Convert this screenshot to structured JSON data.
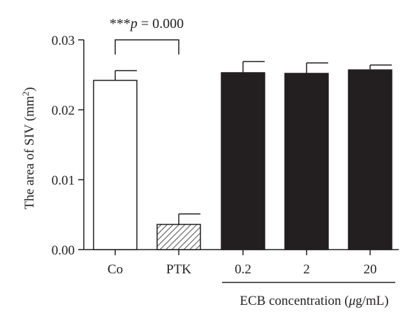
{
  "chart_data": {
    "type": "bar",
    "ylabel_main": "The area of SIV (mm",
    "ylabel_sup": "2",
    "ylabel_end": ")",
    "ylim": [
      0,
      0.03
    ],
    "yticks": [
      "0.00",
      "0.01",
      "0.02",
      "0.03"
    ],
    "ytick_values": [
      0,
      0.01,
      0.02,
      0.03
    ],
    "categories": [
      "Co",
      "PTK",
      "0.2",
      "2",
      "20"
    ],
    "values": [
      0.0242,
      0.0036,
      0.0253,
      0.0252,
      0.0257
    ],
    "errors": [
      0.0014,
      0.0015,
      0.0016,
      0.0015,
      0.0007
    ],
    "fills": [
      "white",
      "hatched",
      "black",
      "black",
      "black"
    ],
    "group_label_main": "ECB concentration (",
    "group_label_mu": "μ",
    "group_label_end": "g/mL)",
    "significance": {
      "stars": "***",
      "p": "p",
      "rest": " = 0.000",
      "between": [
        "Co",
        "PTK"
      ]
    },
    "colors": {
      "ink": "#231f20",
      "bar_black": "#231f20",
      "bar_white": "#ffffff"
    },
    "grid": false
  }
}
